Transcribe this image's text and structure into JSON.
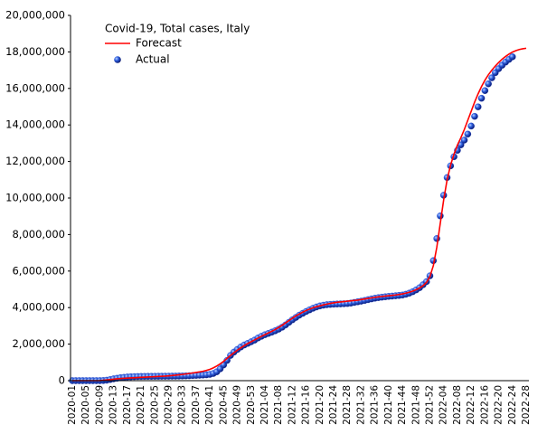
{
  "chart_data": {
    "type": "line",
    "title": "Covid-19, Total cases, Italy",
    "categories": [
      "2020-01",
      null,
      null,
      null,
      "2020-05",
      null,
      null,
      null,
      "2020-09",
      null,
      null,
      null,
      "2020-13",
      null,
      null,
      null,
      "2020-17",
      null,
      null,
      null,
      "2020-21",
      null,
      null,
      null,
      "2020-25",
      null,
      null,
      null,
      "2020-29",
      null,
      null,
      null,
      "2020-33",
      null,
      null,
      null,
      "2020-37",
      null,
      null,
      null,
      "2020-41",
      null,
      null,
      null,
      "2020-45",
      null,
      null,
      null,
      "2020-49",
      null,
      null,
      null,
      "2020-53",
      null,
      null,
      null,
      "2021-04",
      null,
      null,
      null,
      "2021-08",
      null,
      null,
      null,
      "2021-12",
      null,
      null,
      null,
      "2021-16",
      null,
      null,
      null,
      "2021-20",
      null,
      null,
      null,
      "2021-24",
      null,
      null,
      null,
      "2021-28",
      null,
      null,
      null,
      "2021-32",
      null,
      null,
      null,
      "2021-36",
      null,
      null,
      null,
      "2021-40",
      null,
      null,
      null,
      "2021-44",
      null,
      null,
      null,
      "2021-48",
      null,
      null,
      null,
      "2021-52",
      null,
      null,
      null,
      "2022-04",
      null,
      null,
      null,
      "2022-08",
      null,
      null,
      null,
      "2022-12",
      null,
      null,
      null,
      "2022-16",
      null,
      null,
      null,
      "2022-20",
      null,
      null,
      null,
      "2022-24",
      null,
      null,
      null,
      "2022-28"
    ],
    "series": [
      {
        "name": "Forecast",
        "color": "#ff0000",
        "values": [
          0,
          0,
          0,
          0,
          0,
          0,
          0,
          0,
          5000,
          20000,
          40000,
          60000,
          80000,
          100000,
          115000,
          130000,
          140000,
          150000,
          160000,
          170000,
          180000,
          190000,
          200000,
          210000,
          220000,
          230000,
          240000,
          250000,
          265000,
          280000,
          300000,
          320000,
          340000,
          365000,
          390000,
          420000,
          450000,
          480000,
          515000,
          560000,
          620000,
          700000,
          800000,
          920000,
          1060000,
          1220000,
          1380000,
          1530000,
          1670000,
          1800000,
          1920000,
          2030000,
          2130000,
          2230000,
          2330000,
          2430000,
          2520000,
          2610000,
          2700000,
          2800000,
          2910000,
          3030000,
          3160000,
          3290000,
          3420000,
          3540000,
          3650000,
          3750000,
          3840000,
          3920000,
          3990000,
          4050000,
          4100000,
          4150000,
          4190000,
          4230000,
          4260000,
          4290000,
          4310000,
          4330000,
          4350000,
          4370000,
          4390000,
          4410000,
          4440000,
          4470000,
          4500000,
          4530000,
          4560000,
          4590000,
          4610000,
          4630000,
          4650000,
          4670000,
          4690000,
          4720000,
          4750000,
          4790000,
          4840000,
          4900000,
          4980000,
          5080000,
          5200000,
          5380000,
          5700000,
          6300000,
          7300000,
          8600000,
          9900000,
          11000000,
          11800000,
          12400000,
          12900000,
          13300000,
          13750000,
          14250000,
          14750000,
          15250000,
          15700000,
          16100000,
          16450000,
          16750000,
          17000000,
          17220000,
          17420000,
          17600000,
          17750000,
          17880000,
          17990000,
          18070000,
          18130000,
          18170000,
          18200000
        ]
      },
      {
        "name": "Actual",
        "color": "#1a3cc8",
        "values": [
          0,
          0,
          0,
          0,
          0,
          0,
          0,
          0,
          1000,
          7000,
          25000,
          60000,
          100000,
          130000,
          160000,
          180000,
          200000,
          210000,
          220000,
          226000,
          230000,
          233000,
          235000,
          237000,
          238000,
          240000,
          241000,
          243000,
          245000,
          247000,
          249000,
          252000,
          256000,
          263000,
          270000,
          280000,
          288000,
          297000,
          307000,
          320000,
          343000,
          392000,
          484000,
          647000,
          862000,
          1108000,
          1380000,
          1564000,
          1710000,
          1843000,
          1954000,
          2038000,
          2129000,
          2220000,
          2336000,
          2430000,
          2515000,
          2583000,
          2655000,
          2730000,
          2819000,
          2925000,
          3050000,
          3193000,
          3332000,
          3460000,
          3585000,
          3687000,
          3787000,
          3878000,
          3963000,
          4035000,
          4092000,
          4131000,
          4158000,
          4174000,
          4186000,
          4196000,
          4203000,
          4212000,
          4223000,
          4246000,
          4282000,
          4318000,
          4352000,
          4391000,
          4435000,
          4476000,
          4514000,
          4545000,
          4570000,
          4592000,
          4614000,
          4630000,
          4647000,
          4664000,
          4688000,
          4730000,
          4790000,
          4870000,
          4970000,
          5090000,
          5250000,
          5420000,
          5740000,
          6570000,
          7780000,
          9020000,
          10150000,
          11120000,
          11760000,
          12260000,
          12610000,
          12910000,
          13170000,
          13500000,
          13940000,
          14470000,
          14990000,
          15460000,
          15880000,
          16250000,
          16580000,
          16860000,
          17080000,
          17270000,
          17440000,
          17590000,
          17730000,
          null,
          null,
          null,
          null
        ]
      }
    ],
    "ylim": [
      0,
      20000000
    ],
    "yticks": [
      0,
      {
        "value": 2000000,
        "label": "2,000,000"
      },
      {
        "value": 4000000,
        "label": "4,000,000"
      },
      {
        "value": 6000000,
        "label": "6,000,000"
      },
      {
        "value": 8000000,
        "label": "8,000,000"
      },
      {
        "value": 10000000,
        "label": "10,000,000"
      },
      {
        "value": 12000000,
        "label": "12,000,000"
      },
      {
        "value": 14000000,
        "label": "14,000,000"
      },
      {
        "value": 16000000,
        "label": "16,000,000"
      },
      {
        "value": 18000000,
        "label": "18,000,000"
      },
      {
        "value": 20000000,
        "label": "20,000,000"
      }
    ]
  }
}
